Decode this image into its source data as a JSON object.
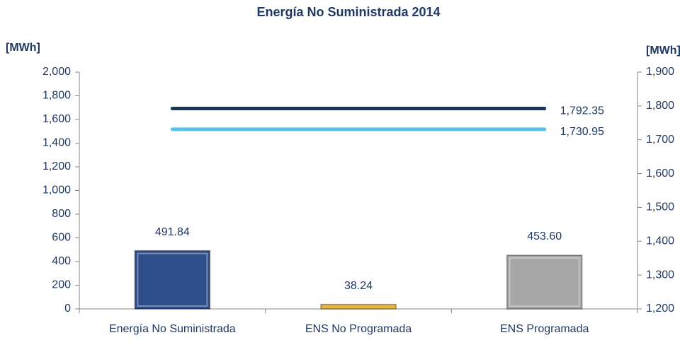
{
  "chart_data": {
    "type": "bar",
    "title": "Energía No Suministrada 2014",
    "y_label": "[MWh]",
    "y2_label": "[MWh]",
    "categories": [
      "Energía No Suministrada",
      "ENS No Programada",
      "ENS Programada"
    ],
    "values": [
      491.84,
      38.24,
      453.6
    ],
    "value_labels": [
      "491.84",
      "38.24",
      "453.60"
    ],
    "colors": [
      "#2E4E8A",
      "#E6B440",
      "#A6A6A6"
    ],
    "lines": [
      {
        "value": 1792.35,
        "label": "1,792.35",
        "color": "#17375E",
        "axis": "y2"
      },
      {
        "value": 1730.95,
        "label": "1,730.95",
        "color": "#5BC0E8",
        "axis": "y2"
      }
    ],
    "ylim": [
      0,
      2000
    ],
    "yticks": [
      0,
      200,
      400,
      600,
      800,
      {
        "value": 1000,
        "label": "1,000"
      },
      {
        "value": 1200,
        "label": "1,200"
      },
      {
        "value": 1400,
        "label": "1,400"
      },
      {
        "value": 1600,
        "label": "1,600"
      },
      {
        "value": 1800,
        "label": "1,800"
      },
      {
        "value": 2000,
        "label": "2,000"
      }
    ],
    "y2lim": [
      1200,
      1900
    ],
    "y2ticks": [
      {
        "value": 1200,
        "label": "1,200"
      },
      {
        "value": 1300,
        "label": "1,300"
      },
      {
        "value": 1400,
        "label": "1,400"
      },
      {
        "value": 1500,
        "label": "1,500"
      },
      {
        "value": 1600,
        "label": "1,600"
      },
      {
        "value": 1700,
        "label": "1,700"
      },
      {
        "value": 1800,
        "label": "1,800"
      },
      {
        "value": 1900,
        "label": "1,900"
      }
    ]
  }
}
